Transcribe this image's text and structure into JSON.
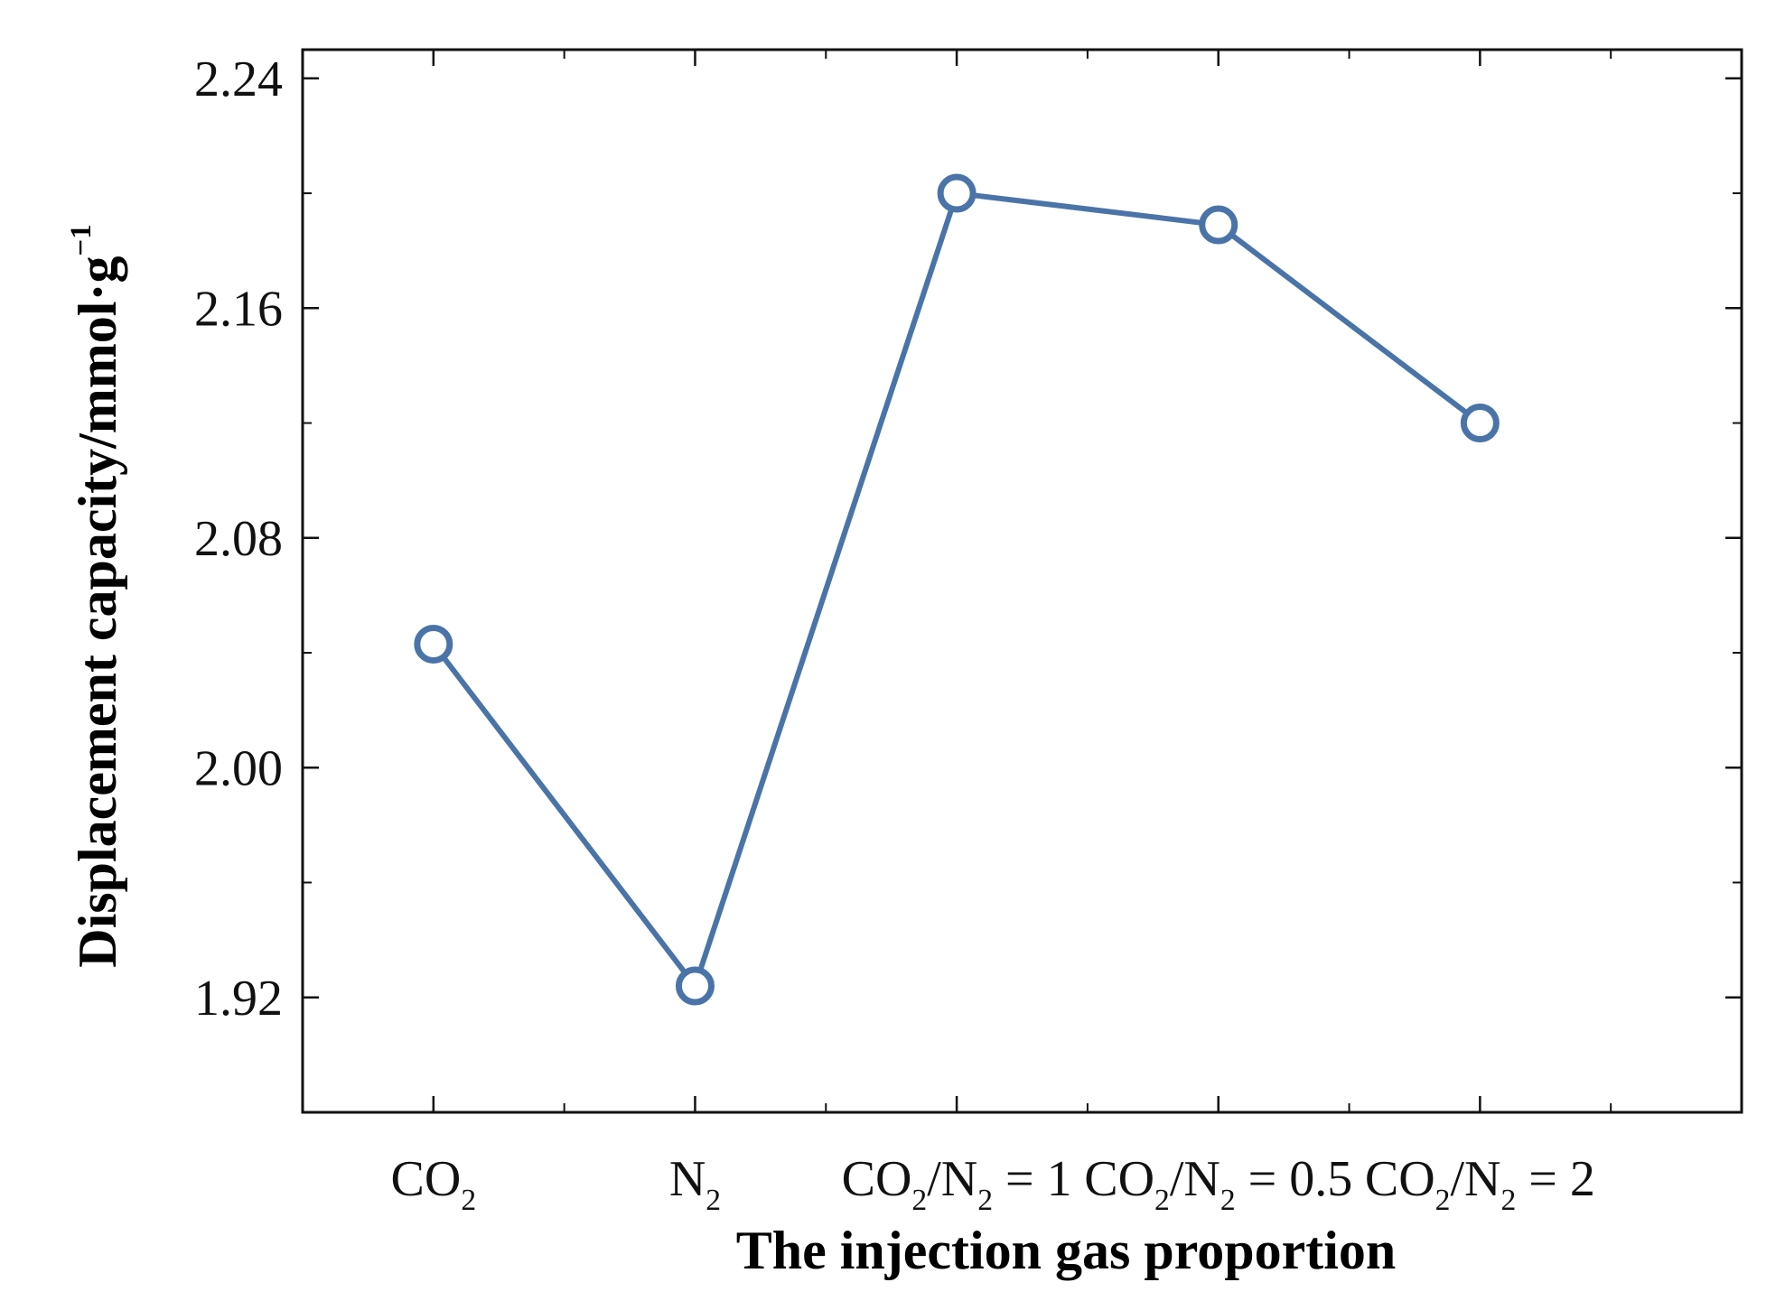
{
  "chart_data": {
    "type": "line",
    "categories": [
      "CO2",
      "N2",
      "CO2/N2 = 1",
      "CO2/N2 = 0.5",
      "CO2/N2 = 2"
    ],
    "category_labels": [
      [
        {
          "t": "CO"
        },
        {
          "t": "2",
          "sub": true
        }
      ],
      [
        {
          "t": "N"
        },
        {
          "t": "2",
          "sub": true
        }
      ],
      [
        {
          "t": "CO"
        },
        {
          "t": "2",
          "sub": true
        },
        {
          "t": "/N"
        },
        {
          "t": "2",
          "sub": true
        },
        {
          "t": " = 1"
        }
      ],
      [
        {
          "t": "CO"
        },
        {
          "t": "2",
          "sub": true
        },
        {
          "t": "/N"
        },
        {
          "t": "2",
          "sub": true
        },
        {
          "t": " = 0.5"
        }
      ],
      [
        {
          "t": "CO"
        },
        {
          "t": "2",
          "sub": true
        },
        {
          "t": "/N"
        },
        {
          "t": "2",
          "sub": true
        },
        {
          "t": " = 2"
        }
      ]
    ],
    "series": [
      {
        "values": [
          2.043,
          1.924,
          2.2,
          2.189,
          2.12
        ]
      }
    ],
    "xlabel": "The injection gas proportion",
    "ylabel": "Displacement capacity/mmol·g",
    "ylabel_superscript": "−1",
    "yticks": [
      1.92,
      2.0,
      2.08,
      2.16,
      2.24
    ],
    "ytick_labels": [
      "1.92",
      "2.00",
      "2.08",
      "2.16",
      "2.24"
    ],
    "ylim": [
      1.88,
      2.25
    ],
    "grid": false,
    "line_color": "#4a74a8",
    "marker": "open-circle"
  }
}
